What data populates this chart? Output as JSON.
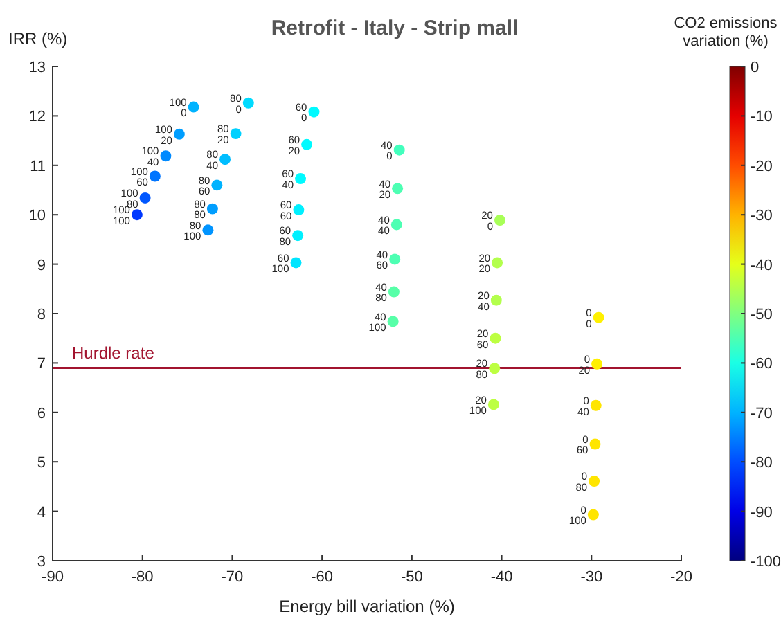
{
  "chart_data": {
    "type": "scatter",
    "title": "Retrofit - Italy - Strip mall",
    "xlabel": "Energy bill variation (%)",
    "ylabel": "IRR (%)",
    "clabel": "CO2 emissions variation (%)",
    "xlim": [
      -90,
      -20
    ],
    "xticks": [
      -90,
      -80,
      -70,
      -60,
      -50,
      -40,
      -30,
      -20
    ],
    "ylim": [
      3,
      13
    ],
    "yticks": [
      3,
      4,
      5,
      6,
      7,
      8,
      9,
      10,
      11,
      12,
      13
    ],
    "clim": [
      -100,
      0
    ],
    "cticks": [
      -100,
      -90,
      -80,
      -70,
      -60,
      -50,
      -40,
      -30,
      -20,
      -10,
      0
    ],
    "grid": false,
    "marker": "circle",
    "annotations": [
      {
        "text": "100\n0",
        "x": -74.3,
        "y": 12.18
      },
      {
        "text": "100\n20",
        "x": -75.9,
        "y": 11.63
      },
      {
        "text": "100\n40",
        "x": -77.4,
        "y": 11.19
      },
      {
        "text": "100\n60",
        "x": -78.6,
        "y": 10.78
      },
      {
        "text": "100\n80",
        "x": -79.7,
        "y": 10.34
      },
      {
        "text": "100\n100",
        "x": -80.6,
        "y": 10.0
      },
      {
        "text": "80\n0",
        "x": -68.2,
        "y": 12.26
      },
      {
        "text": "80\n20",
        "x": -69.6,
        "y": 11.64
      },
      {
        "text": "80\n40",
        "x": -70.8,
        "y": 11.12
      },
      {
        "text": "80\n60",
        "x": -71.7,
        "y": 10.6
      },
      {
        "text": "80\n80",
        "x": -72.2,
        "y": 10.12
      },
      {
        "text": "80\n100",
        "x": -72.7,
        "y": 9.69
      },
      {
        "text": "60\n0",
        "x": -60.9,
        "y": 12.08
      },
      {
        "text": "60\n20",
        "x": -61.7,
        "y": 11.42
      },
      {
        "text": "60\n40",
        "x": -62.4,
        "y": 10.73
      },
      {
        "text": "60\n60",
        "x": -62.6,
        "y": 10.1
      },
      {
        "text": "60\n80",
        "x": -62.7,
        "y": 9.58
      },
      {
        "text": "60\n100",
        "x": -62.9,
        "y": 9.03
      },
      {
        "text": "40\n0",
        "x": -51.4,
        "y": 11.31
      },
      {
        "text": "40\n20",
        "x": -51.6,
        "y": 10.53
      },
      {
        "text": "40\n40",
        "x": -51.7,
        "y": 9.8
      },
      {
        "text": "40\n60",
        "x": -51.9,
        "y": 9.1
      },
      {
        "text": "40\n80",
        "x": -52.0,
        "y": 8.44
      },
      {
        "text": "40\n100",
        "x": -52.1,
        "y": 7.84
      },
      {
        "text": "20\n0",
        "x": -40.2,
        "y": 9.89
      },
      {
        "text": "20\n20",
        "x": -40.5,
        "y": 9.03
      },
      {
        "text": "20\n40",
        "x": -40.6,
        "y": 8.27
      },
      {
        "text": "20\n60",
        "x": -40.7,
        "y": 7.5
      },
      {
        "text": "20\n80",
        "x": -40.8,
        "y": 6.89
      },
      {
        "text": "20\n100",
        "x": -40.9,
        "y": 6.16
      },
      {
        "text": "0\n0",
        "x": -29.2,
        "y": 7.92
      },
      {
        "text": "0\n20",
        "x": -29.4,
        "y": 6.98
      },
      {
        "text": "0\n40",
        "x": -29.5,
        "y": 6.14
      },
      {
        "text": "0\n60",
        "x": -29.6,
        "y": 5.36
      },
      {
        "text": "0\n80",
        "x": -29.7,
        "y": 4.61
      },
      {
        "text": "0\n100",
        "x": -29.8,
        "y": 3.93
      }
    ],
    "ref_lines": [
      {
        "axis": "y",
        "value": 6.9,
        "label": "Hurdle rate",
        "color": "#a2142f"
      }
    ],
    "series": [
      {
        "x": [
          -74.3,
          -75.9,
          -77.4,
          -78.6,
          -79.7,
          -80.6,
          -68.2,
          -69.6,
          -70.8,
          -71.7,
          -72.2,
          -72.7,
          -60.9,
          -61.7,
          -62.4,
          -62.6,
          -62.7,
          -62.9,
          -51.4,
          -51.6,
          -51.7,
          -51.9,
          -52.0,
          -52.1,
          -40.2,
          -40.5,
          -40.6,
          -40.7,
          -40.8,
          -40.9,
          -29.2,
          -29.4,
          -29.5,
          -29.6,
          -29.7,
          -29.8
        ],
        "values": [
          12.18,
          11.63,
          11.19,
          10.78,
          10.34,
          10.0,
          12.26,
          11.64,
          11.12,
          10.6,
          10.12,
          9.69,
          12.08,
          11.42,
          10.73,
          10.1,
          9.58,
          9.03,
          11.31,
          10.53,
          9.8,
          9.1,
          8.44,
          7.84,
          9.89,
          9.03,
          8.27,
          7.5,
          6.89,
          6.16,
          7.92,
          6.98,
          6.14,
          5.36,
          4.61,
          3.93
        ],
        "cvalues": [
          -70,
          -72,
          -74,
          -76,
          -79,
          -82,
          -66,
          -67,
          -69,
          -70,
          -72,
          -73,
          -63,
          -63,
          -63,
          -64,
          -64,
          -65,
          -56,
          -55,
          -55,
          -55,
          -54,
          -54,
          -46,
          -45,
          -45,
          -44,
          -44,
          -44,
          -36,
          -36,
          -35,
          -35,
          -35,
          -35
        ]
      }
    ]
  }
}
